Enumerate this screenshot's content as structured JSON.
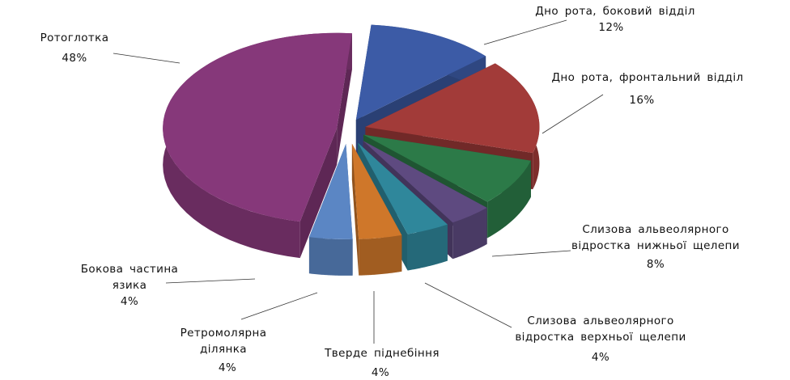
{
  "chart_data": {
    "type": "pie3d",
    "categories": [
      "Дно рота, боковий відділ",
      "Дно рота, фронтальний відділ",
      "Слизова альвеолярного відростка нижньої щелепи",
      "Слизова альвеолярного відростка верхньої щелепи",
      "Тверде піднебіння",
      "Ретромолярна ділянка",
      "Бокова частина язика",
      "Ротоглотка"
    ],
    "values": [
      12,
      16,
      8,
      4,
      4,
      4,
      4,
      48
    ],
    "value_labels": [
      "12%",
      "16%",
      "8%",
      "4%",
      "4%",
      "4%",
      "4%",
      "48%"
    ],
    "colors": [
      "#3c5ba6",
      "#a23b39",
      "#2c7a48",
      "#5e4a80",
      "#2f879b",
      "#cf772a",
      "#5b86c4",
      "#86387a"
    ]
  }
}
